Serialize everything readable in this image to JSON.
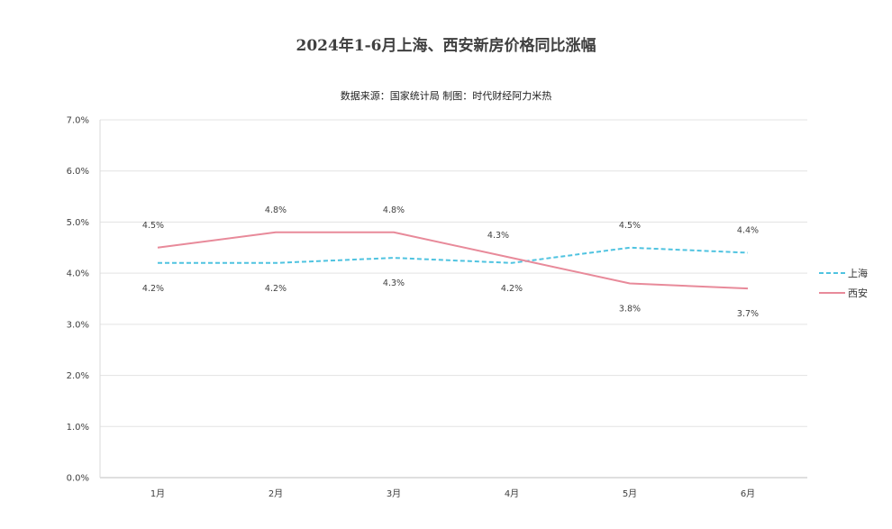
{
  "header": {
    "title": "2024年1-6月上海、西安新房价格同比涨幅",
    "subtitle": "数据来源：国家统计局 制图：时代财经阿力米热"
  },
  "chart_data": {
    "type": "line",
    "title": "2024年1-6月上海、西安新房价格同比涨幅",
    "subtitle": "数据来源：国家统计局 制图：时代财经阿力米热",
    "categories": [
      "1月",
      "2月",
      "3月",
      "4月",
      "5月",
      "6月"
    ],
    "yticks": [
      "0.0%",
      "1.0%",
      "2.0%",
      "3.0%",
      "4.0%",
      "5.0%",
      "6.0%",
      "7.0%"
    ],
    "ylim": [
      0,
      7
    ],
    "grid": true,
    "legend_position": "right",
    "series": [
      {
        "name": "上海",
        "values": [
          4.2,
          4.2,
          4.3,
          4.2,
          4.5,
          4.4
        ],
        "labels": [
          "4.2%",
          "4.2%",
          "4.3%",
          "4.2%",
          "4.5%",
          "4.4%"
        ],
        "color": "#4FC3E0",
        "dash": true
      },
      {
        "name": "西安",
        "values": [
          4.5,
          4.8,
          4.8,
          4.3,
          3.8,
          3.7
        ],
        "labels": [
          "4.5%",
          "4.8%",
          "4.8%",
          "4.3%",
          "3.8%",
          "3.7%"
        ],
        "color": "#E88A9A",
        "dash": false
      }
    ]
  }
}
